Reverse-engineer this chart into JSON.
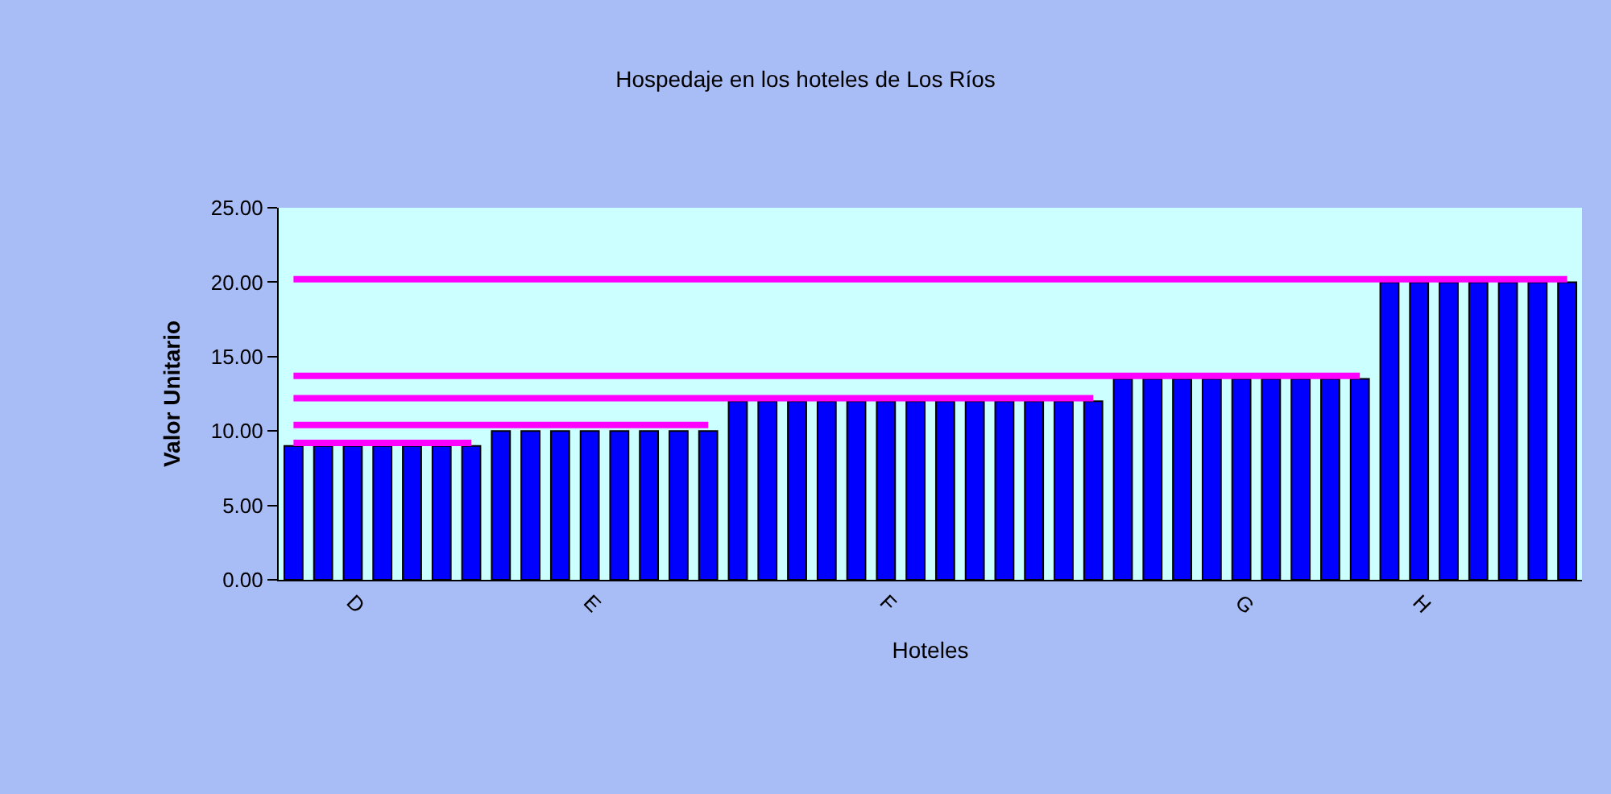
{
  "chart_data": {
    "type": "bar",
    "title": "Hospedaje en los hoteles de Los Ríos",
    "xlabel": "Hoteles",
    "ylabel": "Valor Unitario",
    "categories": [
      null,
      null,
      "D",
      null,
      null,
      null,
      null,
      null,
      null,
      null,
      "E",
      null,
      null,
      null,
      null,
      null,
      null,
      null,
      null,
      null,
      "F",
      null,
      null,
      null,
      null,
      null,
      null,
      null,
      null,
      null,
      null,
      null,
      "G",
      null,
      null,
      null,
      null,
      null,
      "H",
      null,
      null,
      null,
      null,
      null
    ],
    "ylim": [
      0,
      25
    ],
    "yticks": [
      {
        "value": 0,
        "label": "0.00"
      },
      {
        "value": 5,
        "label": "5.00"
      },
      {
        "value": 10,
        "label": "10.00"
      },
      {
        "value": 15,
        "label": "15.00"
      },
      {
        "value": 20,
        "label": "20.00"
      },
      {
        "value": 25,
        "label": "25.00"
      }
    ],
    "grid": false,
    "series": [
      {
        "color": "#0000ff",
        "values": [
          9,
          9,
          9,
          9,
          9,
          9,
          9,
          10,
          10,
          10,
          10,
          10,
          10,
          10,
          10,
          12,
          12,
          12,
          12,
          12,
          12,
          12,
          12,
          12,
          12,
          12,
          12,
          12,
          13.5,
          13.5,
          13.5,
          13.5,
          13.5,
          13.5,
          13.5,
          13.5,
          13.5,
          20,
          20,
          20,
          20,
          20,
          20,
          20
        ]
      },
      {
        "type": "line",
        "color": "#ff00ff",
        "values": [
          9.2,
          9.2,
          9.2,
          9.2,
          9.2,
          9.2,
          9.2,
          null,
          null,
          null,
          null,
          null,
          null,
          null,
          null,
          null,
          null,
          null,
          null,
          null,
          null,
          null,
          null,
          null,
          null,
          null,
          null,
          null,
          null,
          null,
          null,
          null,
          null,
          null,
          null,
          null,
          null,
          null,
          null,
          null,
          null,
          null,
          null,
          null
        ]
      },
      {
        "type": "line",
        "color": "#ff00ff",
        "values": [
          10.4,
          10.4,
          10.4,
          10.4,
          10.4,
          10.4,
          10.4,
          10.4,
          10.4,
          10.4,
          10.4,
          10.4,
          10.4,
          10.4,
          10.4,
          null,
          null,
          null,
          null,
          null,
          null,
          null,
          null,
          null,
          null,
          null,
          null,
          null,
          null,
          null,
          null,
          null,
          null,
          null,
          null,
          null,
          null,
          null,
          null,
          null,
          null,
          null,
          null,
          null
        ]
      },
      {
        "type": "line",
        "color": "#ff00ff",
        "values": [
          12.2,
          12.2,
          12.2,
          12.2,
          12.2,
          12.2,
          12.2,
          12.2,
          12.2,
          12.2,
          12.2,
          12.2,
          12.2,
          12.2,
          12.2,
          12.2,
          12.2,
          12.2,
          12.2,
          12.2,
          12.2,
          12.2,
          12.2,
          12.2,
          12.2,
          12.2,
          12.2,
          12.2,
          null,
          null,
          null,
          null,
          null,
          null,
          null,
          null,
          null,
          null,
          null,
          null,
          null,
          null,
          null,
          null
        ]
      },
      {
        "type": "line",
        "color": "#ff00ff",
        "values": [
          13.7,
          13.7,
          13.7,
          13.7,
          13.7,
          13.7,
          13.7,
          13.7,
          13.7,
          13.7,
          13.7,
          13.7,
          13.7,
          13.7,
          13.7,
          13.7,
          13.7,
          13.7,
          13.7,
          13.7,
          13.7,
          13.7,
          13.7,
          13.7,
          13.7,
          13.7,
          13.7,
          13.7,
          13.7,
          13.7,
          13.7,
          13.7,
          13.7,
          13.7,
          13.7,
          13.7,
          13.7,
          null,
          null,
          null,
          null,
          null,
          null,
          null
        ]
      },
      {
        "type": "line",
        "color": "#ff00ff",
        "values": [
          20.2,
          20.2,
          20.2,
          20.2,
          20.2,
          20.2,
          20.2,
          20.2,
          20.2,
          20.2,
          20.2,
          20.2,
          20.2,
          20.2,
          20.2,
          20.2,
          20.2,
          20.2,
          20.2,
          20.2,
          20.2,
          20.2,
          20.2,
          20.2,
          20.2,
          20.2,
          20.2,
          20.2,
          20.2,
          20.2,
          20.2,
          20.2,
          20.2,
          20.2,
          20.2,
          20.2,
          20.2,
          20.2,
          20.2,
          20.2,
          20.2,
          20.2,
          20.2,
          20.2
        ]
      }
    ]
  }
}
